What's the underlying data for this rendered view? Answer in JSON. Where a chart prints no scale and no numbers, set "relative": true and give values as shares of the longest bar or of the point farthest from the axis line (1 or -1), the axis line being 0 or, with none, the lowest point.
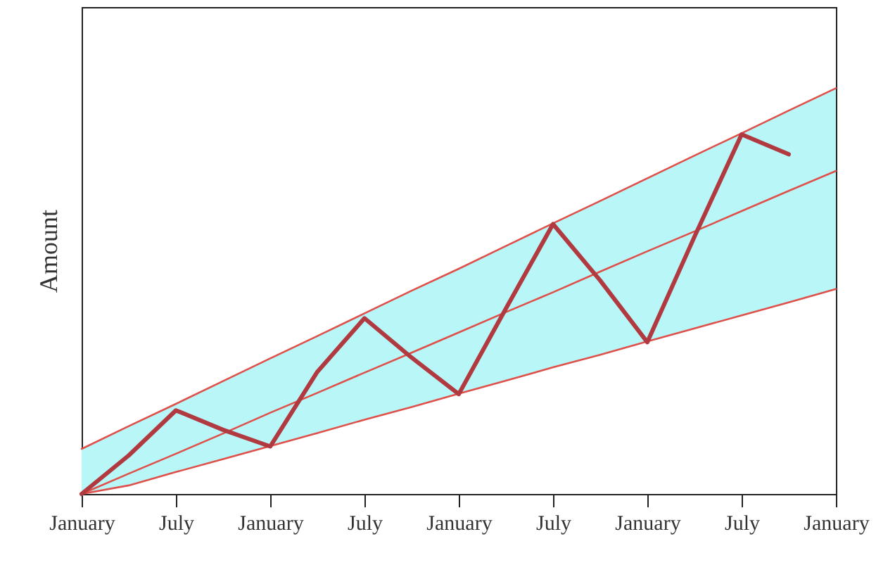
{
  "chart_data": {
    "type": "line",
    "ylabel": "Amount",
    "relative": true,
    "categories": [
      "January",
      null,
      "July",
      null,
      "January",
      null,
      "July",
      null,
      "January",
      null,
      "July",
      null,
      "January",
      null,
      "July",
      null,
      "January"
    ],
    "grid": false,
    "marker": "none",
    "line_style": "solid",
    "series": [
      {
        "color": "#e0504a",
        "values": [
          0,
          0.05,
          0.099,
          0.149,
          0.2,
          0.249,
          0.299,
          0.348,
          0.398,
          0.448,
          0.497,
          0.548,
          0.598,
          0.647,
          0.697,
          0.747,
          0.796
        ],
        "lower": [
          0,
          0.021,
          0.054,
          0.086,
          0.118,
          0.15,
          0.183,
          0.214,
          0.247,
          0.279,
          0.312,
          0.343,
          0.376,
          0.408,
          0.44,
          0.472,
          0.505
        ],
        "upper": [
          0.111,
          0.167,
          0.222,
          0.278,
          0.334,
          0.389,
          0.445,
          0.501,
          0.555,
          0.611,
          0.667,
          0.722,
          0.778,
          0.834,
          0.889,
          0.945,
          1
        ]
      },
      {
        "color": "#e0504a",
        "values": [
          0.111,
          0.167,
          0.222,
          0.278,
          0.334,
          0.389,
          0.445,
          0.501,
          0.555,
          0.611,
          0.667,
          0.722,
          0.778,
          0.834,
          0.889,
          0.945,
          1
        ]
      },
      {
        "color": "#e0504a",
        "values": [
          0,
          0.021,
          0.054,
          0.086,
          0.118,
          0.15,
          0.183,
          0.214,
          0.247,
          0.279,
          0.312,
          0.343,
          0.376,
          0.408,
          0.44,
          0.472,
          0.505
        ]
      },
      {
        "color": "#b03a3f",
        "values": [
          0,
          0.095,
          0.206,
          0.158,
          0.117,
          0.301,
          0.433,
          0.336,
          0.246,
          0.457,
          0.665,
          0.526,
          0.374,
          0.634,
          0.886,
          0.837,
          null
        ]
      }
    ]
  }
}
